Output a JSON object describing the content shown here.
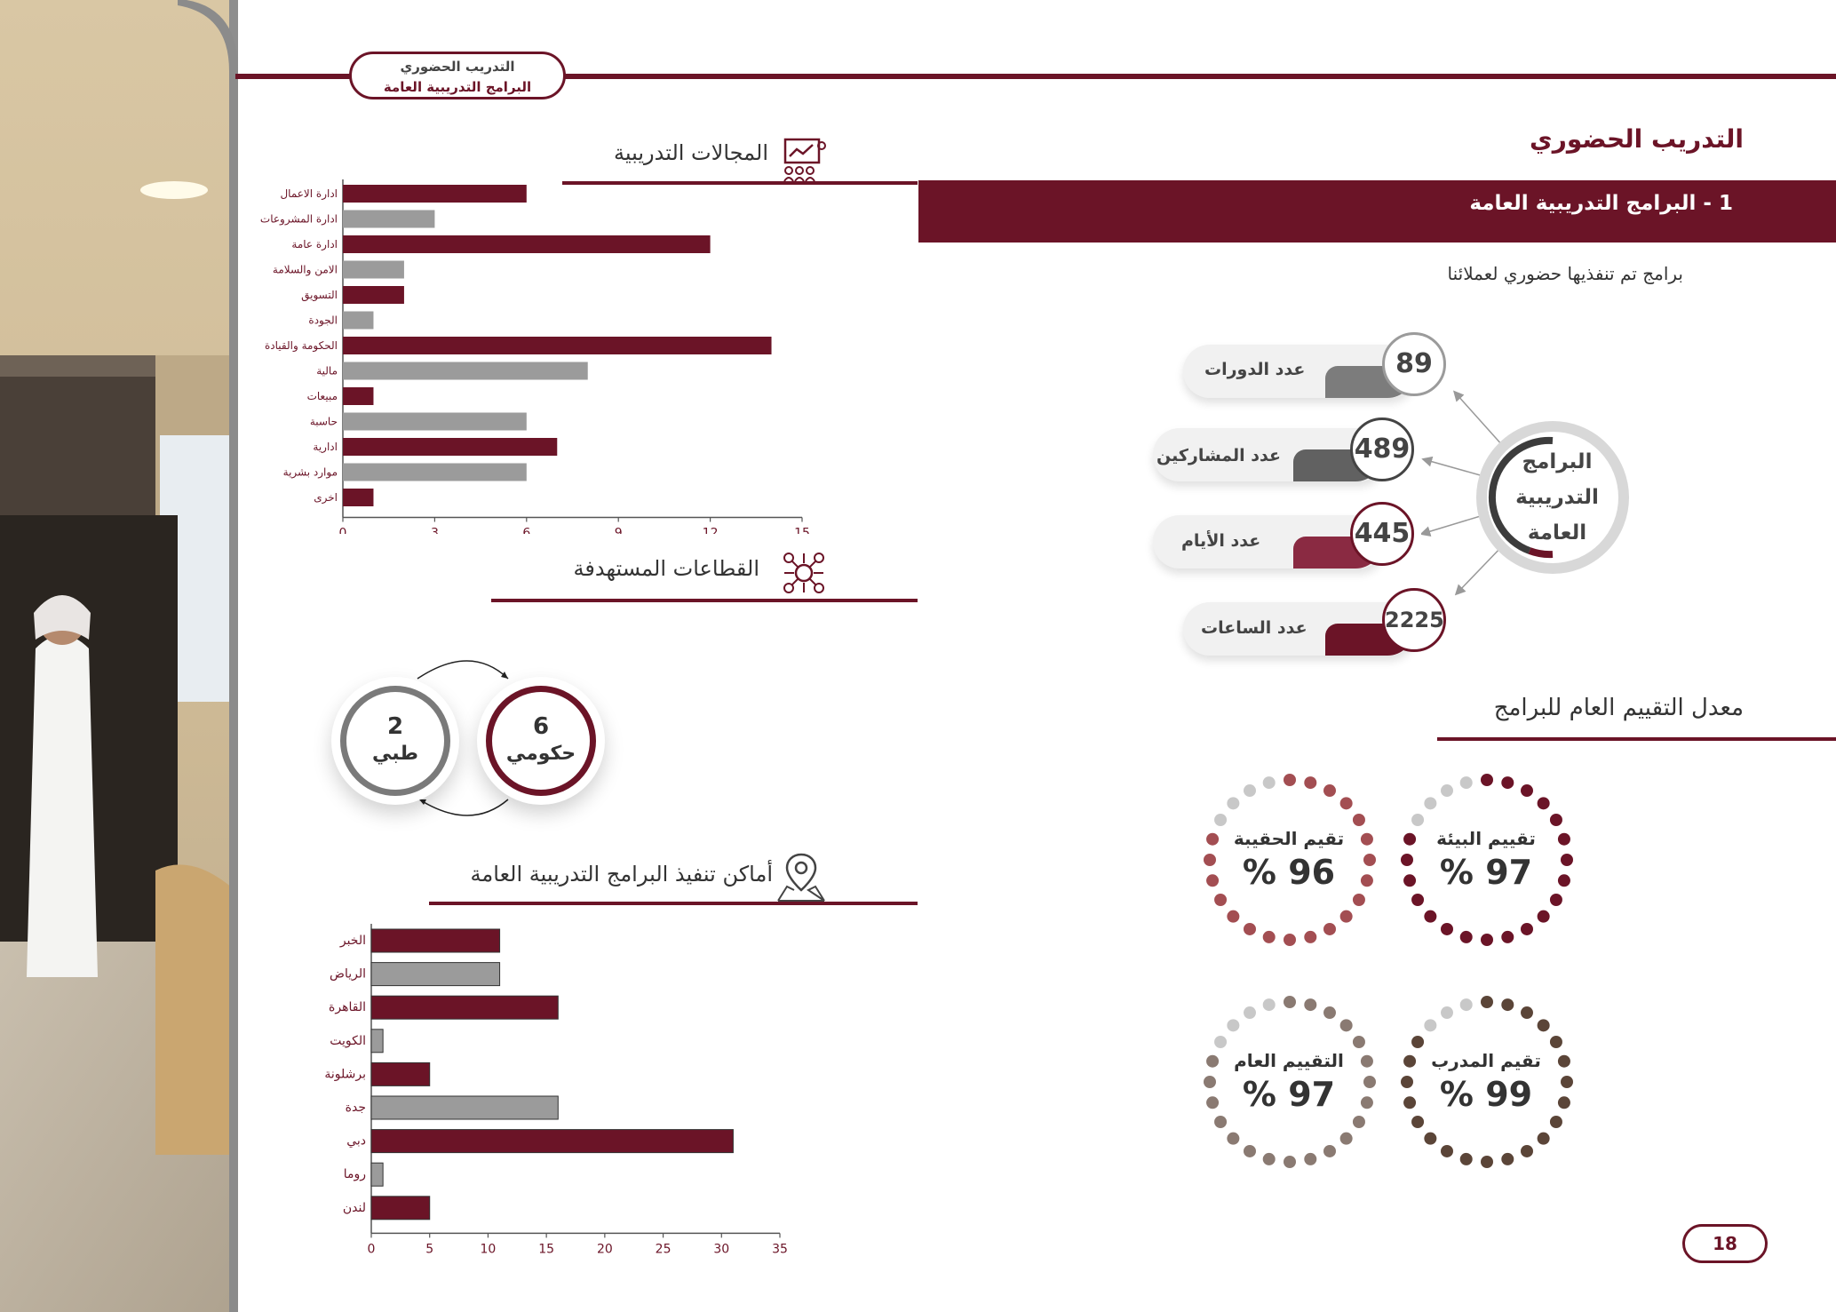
{
  "header": {
    "tag_line1": "التدريب الحضوري",
    "tag_line2": "البرامج التدريبية العامة"
  },
  "main_title": "التدريب الحضوري",
  "section": {
    "title": "1 - البرامج التدريبية العامة",
    "description": "برامج تم تنفذيها حضوري لعملائنا"
  },
  "hub": {
    "line1": "البرامج",
    "line2": "التدريبية",
    "line3": "العامة"
  },
  "stats": [
    {
      "label": "عدد الدورات",
      "value": "89"
    },
    {
      "label": "عدد المشاركين",
      "value": "489"
    },
    {
      "label": "عدد الأيام",
      "value": "445"
    },
    {
      "label": "عدد الساعات",
      "value": "2225"
    }
  ],
  "ratings": {
    "title": "معدل التقييم العام للبرامج",
    "items": [
      {
        "label": "تقييم البيئة",
        "value": "97 %",
        "color": "#6b1427"
      },
      {
        "label": "تقيم الحقيبة",
        "value": "96 %",
        "color": "#a34e52"
      },
      {
        "label": "تقيم المدرب",
        "value": "99 %",
        "color": "#5b4538"
      },
      {
        "label": "التقييم العام",
        "value": "97 %",
        "color": "#8a7a72"
      }
    ]
  },
  "fields": {
    "title": "المجالات التدريبية"
  },
  "sectors": {
    "title": "القطاعات المستهدفة",
    "items": [
      {
        "value": "6",
        "label": "حكومي"
      },
      {
        "value": "2",
        "label": "طبي"
      }
    ]
  },
  "locations": {
    "title": "أماكن تنفيذ البرامج التدريبية العامة"
  },
  "page_number": "18",
  "colors": {
    "primary": "#6b1427",
    "secondary": "#9b9b9b"
  },
  "chart_data": [
    {
      "type": "bar",
      "orientation": "horizontal",
      "categories": [
        "ادارة الاعمال",
        "ادارة المشروعات",
        "ادارة عامة",
        "الامن والسلامة",
        "التسويق",
        "الجودة",
        "الحكومة والقيادة",
        "مالية",
        "مبيعات",
        "حاسبة",
        "ادارية",
        "موارد بشرية",
        "اخرى"
      ],
      "values": [
        6,
        3,
        12,
        2,
        2,
        1,
        14,
        8,
        1,
        6,
        7,
        6,
        1
      ],
      "xlim": [
        0,
        15
      ],
      "xticks": [
        0,
        3,
        6,
        9,
        12,
        15
      ]
    },
    {
      "type": "bar",
      "orientation": "horizontal",
      "categories": [
        "الخبر",
        "الرياض",
        "القاهرة",
        "الكويت",
        "برشلونة",
        "جدة",
        "دبي",
        "روما",
        "لندن"
      ],
      "values": [
        11,
        11,
        16,
        1,
        5,
        16,
        31,
        1,
        5
      ],
      "xlim": [
        0,
        35
      ],
      "xticks": [
        0,
        5,
        10,
        15,
        20,
        25,
        30,
        35
      ]
    }
  ]
}
